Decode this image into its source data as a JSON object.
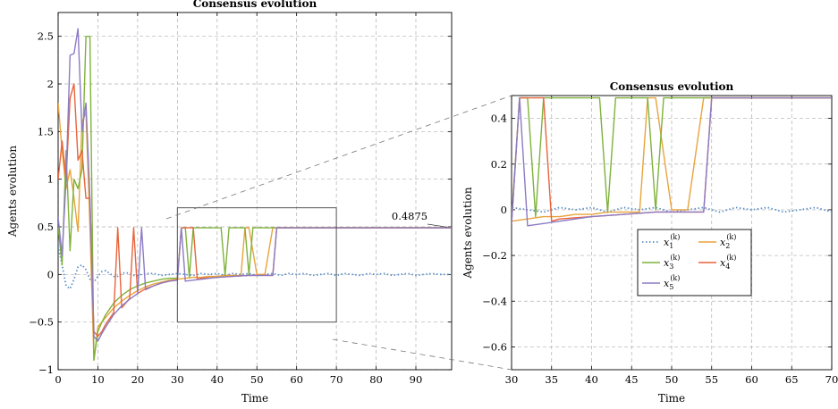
{
  "colors": {
    "x1": "#5b8fc9",
    "x2": "#e8a33c",
    "x3": "#7fb23a",
    "x4": "#e8643c",
    "x5": "#8c7bc4",
    "grid": "#b0b0b0",
    "box": "#555555"
  },
  "annotation": {
    "value_label": "0.4875"
  },
  "legend_entries": [
    {
      "key": "x1",
      "base": "x",
      "sub": "1",
      "sup": "(k)"
    },
    {
      "key": "x2",
      "base": "x",
      "sub": "2",
      "sup": "(k)"
    },
    {
      "key": "x3",
      "base": "x",
      "sub": "3",
      "sup": "(k)"
    },
    {
      "key": "x4",
      "base": "x",
      "sub": "4",
      "sup": "(k)"
    },
    {
      "key": "x5",
      "base": "x",
      "sub": "5",
      "sup": "(k)"
    }
  ],
  "chart_data": [
    {
      "type": "line",
      "title": "Consensus evolution",
      "xlabel": "Time",
      "ylabel": "Agents evolution",
      "xlim": [
        0,
        99
      ],
      "ylim": [
        -1,
        2.75
      ],
      "xticks": [
        "0",
        "10",
        "20",
        "30",
        "40",
        "50",
        "60",
        "70",
        "80",
        "90"
      ],
      "yticks": [
        "−1",
        "−0.5",
        "0",
        "0.5",
        "1",
        "1.5",
        "2",
        "2.5"
      ],
      "grid": true,
      "zoom_box": {
        "x": [
          30,
          70
        ],
        "y": [
          -0.5,
          0.7
        ]
      },
      "series": [
        {
          "name": "x1",
          "style": "dotted",
          "x": [
            0,
            1,
            2,
            3,
            4,
            5,
            6,
            7,
            8,
            9,
            10,
            11,
            12,
            13,
            14,
            15,
            16,
            17,
            18,
            19,
            20,
            22,
            24,
            26,
            28,
            30,
            32,
            34,
            36,
            38,
            40,
            42,
            44,
            46,
            48,
            50,
            52,
            54,
            56,
            58,
            60,
            62,
            64,
            66,
            68,
            70,
            72,
            74,
            76,
            78,
            80,
            82,
            84,
            86,
            88,
            90,
            92,
            94,
            96,
            99
          ],
          "y": [
            0.3,
            0.1,
            -0.12,
            -0.15,
            -0.05,
            0.08,
            0.1,
            0.05,
            -0.05,
            -0.08,
            -0.02,
            0.03,
            0.04,
            0.01,
            -0.02,
            -0.02,
            0.01,
            0.02,
            0.01,
            -0.01,
            -0.01,
            0.01,
            0.01,
            -0.01,
            0,
            0.01,
            0,
            -0.01,
            0.01,
            0,
            0.01,
            -0.01,
            0.01,
            0,
            0.01,
            -0.01,
            0,
            0.01,
            -0.01,
            0.01,
            0,
            0.01,
            -0.01,
            0,
            0.01,
            -0.01,
            0.01,
            0,
            -0.01,
            0.01,
            0,
            0.01,
            -0.01,
            0,
            0.01,
            -0.01,
            0,
            0.01,
            0,
            0
          ]
        },
        {
          "name": "x2",
          "style": "solid",
          "x": [
            0,
            1,
            2,
            3,
            4,
            5,
            6,
            7,
            8,
            9,
            10,
            11,
            12,
            14,
            16,
            18,
            20,
            22,
            24,
            26,
            28,
            30,
            32,
            34,
            36,
            38,
            40,
            42,
            44,
            46,
            47,
            48,
            50,
            52,
            54,
            56,
            99
          ],
          "y": [
            1.8,
            1.3,
            0.9,
            1.1,
            0.8,
            0.45,
            1.6,
            1.7,
            0.5,
            -0.9,
            -0.55,
            -0.5,
            -0.45,
            -0.35,
            -0.28,
            -0.22,
            -0.17,
            -0.13,
            -0.1,
            -0.08,
            -0.06,
            -0.05,
            -0.04,
            -0.03,
            -0.03,
            -0.02,
            -0.02,
            -0.01,
            -0.01,
            -0.01,
            0.49,
            0.49,
            0.0,
            0.0,
            0.49,
            0.49,
            0.49
          ]
        },
        {
          "name": "x3",
          "style": "solid",
          "x": [
            0,
            1,
            2,
            3,
            4,
            5,
            6,
            7,
            8,
            9,
            10,
            11,
            12,
            14,
            16,
            18,
            20,
            22,
            24,
            26,
            28,
            30,
            31,
            32,
            33,
            34,
            38,
            40,
            41,
            42,
            43,
            44,
            46,
            47,
            48,
            49,
            50,
            52,
            54,
            56,
            99
          ],
          "y": [
            0.5,
            0.1,
            1.3,
            0.25,
            1.0,
            0.9,
            1.1,
            2.5,
            2.5,
            -0.9,
            -0.6,
            -0.5,
            -0.42,
            -0.3,
            -0.22,
            -0.16,
            -0.12,
            -0.09,
            -0.07,
            -0.05,
            -0.04,
            -0.04,
            0.49,
            0.49,
            -0.03,
            0.49,
            0.49,
            0.49,
            0.49,
            -0.01,
            0.49,
            0.49,
            0.49,
            0.49,
            0.0,
            0.49,
            0.49,
            0.49,
            0.49,
            0.49,
            0.49
          ]
        },
        {
          "name": "x4",
          "style": "solid",
          "x": [
            0,
            1,
            2,
            3,
            4,
            5,
            6,
            7,
            8,
            9,
            10,
            11,
            12,
            14,
            15,
            16,
            18,
            19,
            20,
            22,
            24,
            26,
            28,
            30,
            31,
            32,
            33,
            34,
            35,
            36,
            40,
            44,
            48,
            52,
            54,
            55,
            56,
            99
          ],
          "y": [
            1.0,
            1.4,
            1.0,
            1.85,
            2.0,
            1.2,
            1.3,
            0.8,
            0.8,
            -0.6,
            -0.65,
            -0.6,
            -0.52,
            -0.4,
            0.49,
            -0.35,
            -0.25,
            0.49,
            -0.2,
            -0.15,
            -0.12,
            -0.09,
            -0.07,
            -0.06,
            0.49,
            0.49,
            0.49,
            0.49,
            -0.05,
            -0.04,
            -0.03,
            -0.02,
            -0.01,
            -0.01,
            -0.01,
            0.49,
            0.49,
            0.49
          ]
        },
        {
          "name": "x5",
          "style": "solid",
          "x": [
            0,
            1,
            2,
            3,
            4,
            5,
            6,
            7,
            8,
            9,
            10,
            11,
            12,
            14,
            16,
            18,
            20,
            21,
            22,
            24,
            26,
            28,
            30,
            31,
            32,
            34,
            36,
            40,
            44,
            48,
            52,
            54,
            55,
            56,
            99
          ],
          "y": [
            0.6,
            0.2,
            1.0,
            2.3,
            2.32,
            2.58,
            1.5,
            1.8,
            0.8,
            -0.65,
            -0.7,
            -0.62,
            -0.55,
            -0.42,
            -0.33,
            -0.26,
            -0.2,
            0.49,
            -0.16,
            -0.12,
            -0.09,
            -0.07,
            -0.06,
            0.49,
            -0.07,
            -0.06,
            -0.05,
            -0.03,
            -0.02,
            -0.01,
            -0.01,
            -0.01,
            0.49,
            0.49,
            0.49
          ]
        }
      ]
    },
    {
      "type": "line",
      "title": "Consensus evolution",
      "xlabel": "Time",
      "ylabel": "Agents evolution",
      "xlim": [
        30,
        70
      ],
      "ylim": [
        -0.7,
        0.5
      ],
      "xticks": [
        "30",
        "35",
        "40",
        "45",
        "50",
        "55",
        "60",
        "65",
        "70"
      ],
      "yticks": [
        "−0.6",
        "−0.4",
        "−0.2",
        "0",
        "0.2",
        "0.4"
      ],
      "grid": true,
      "legend": "center"
    }
  ]
}
